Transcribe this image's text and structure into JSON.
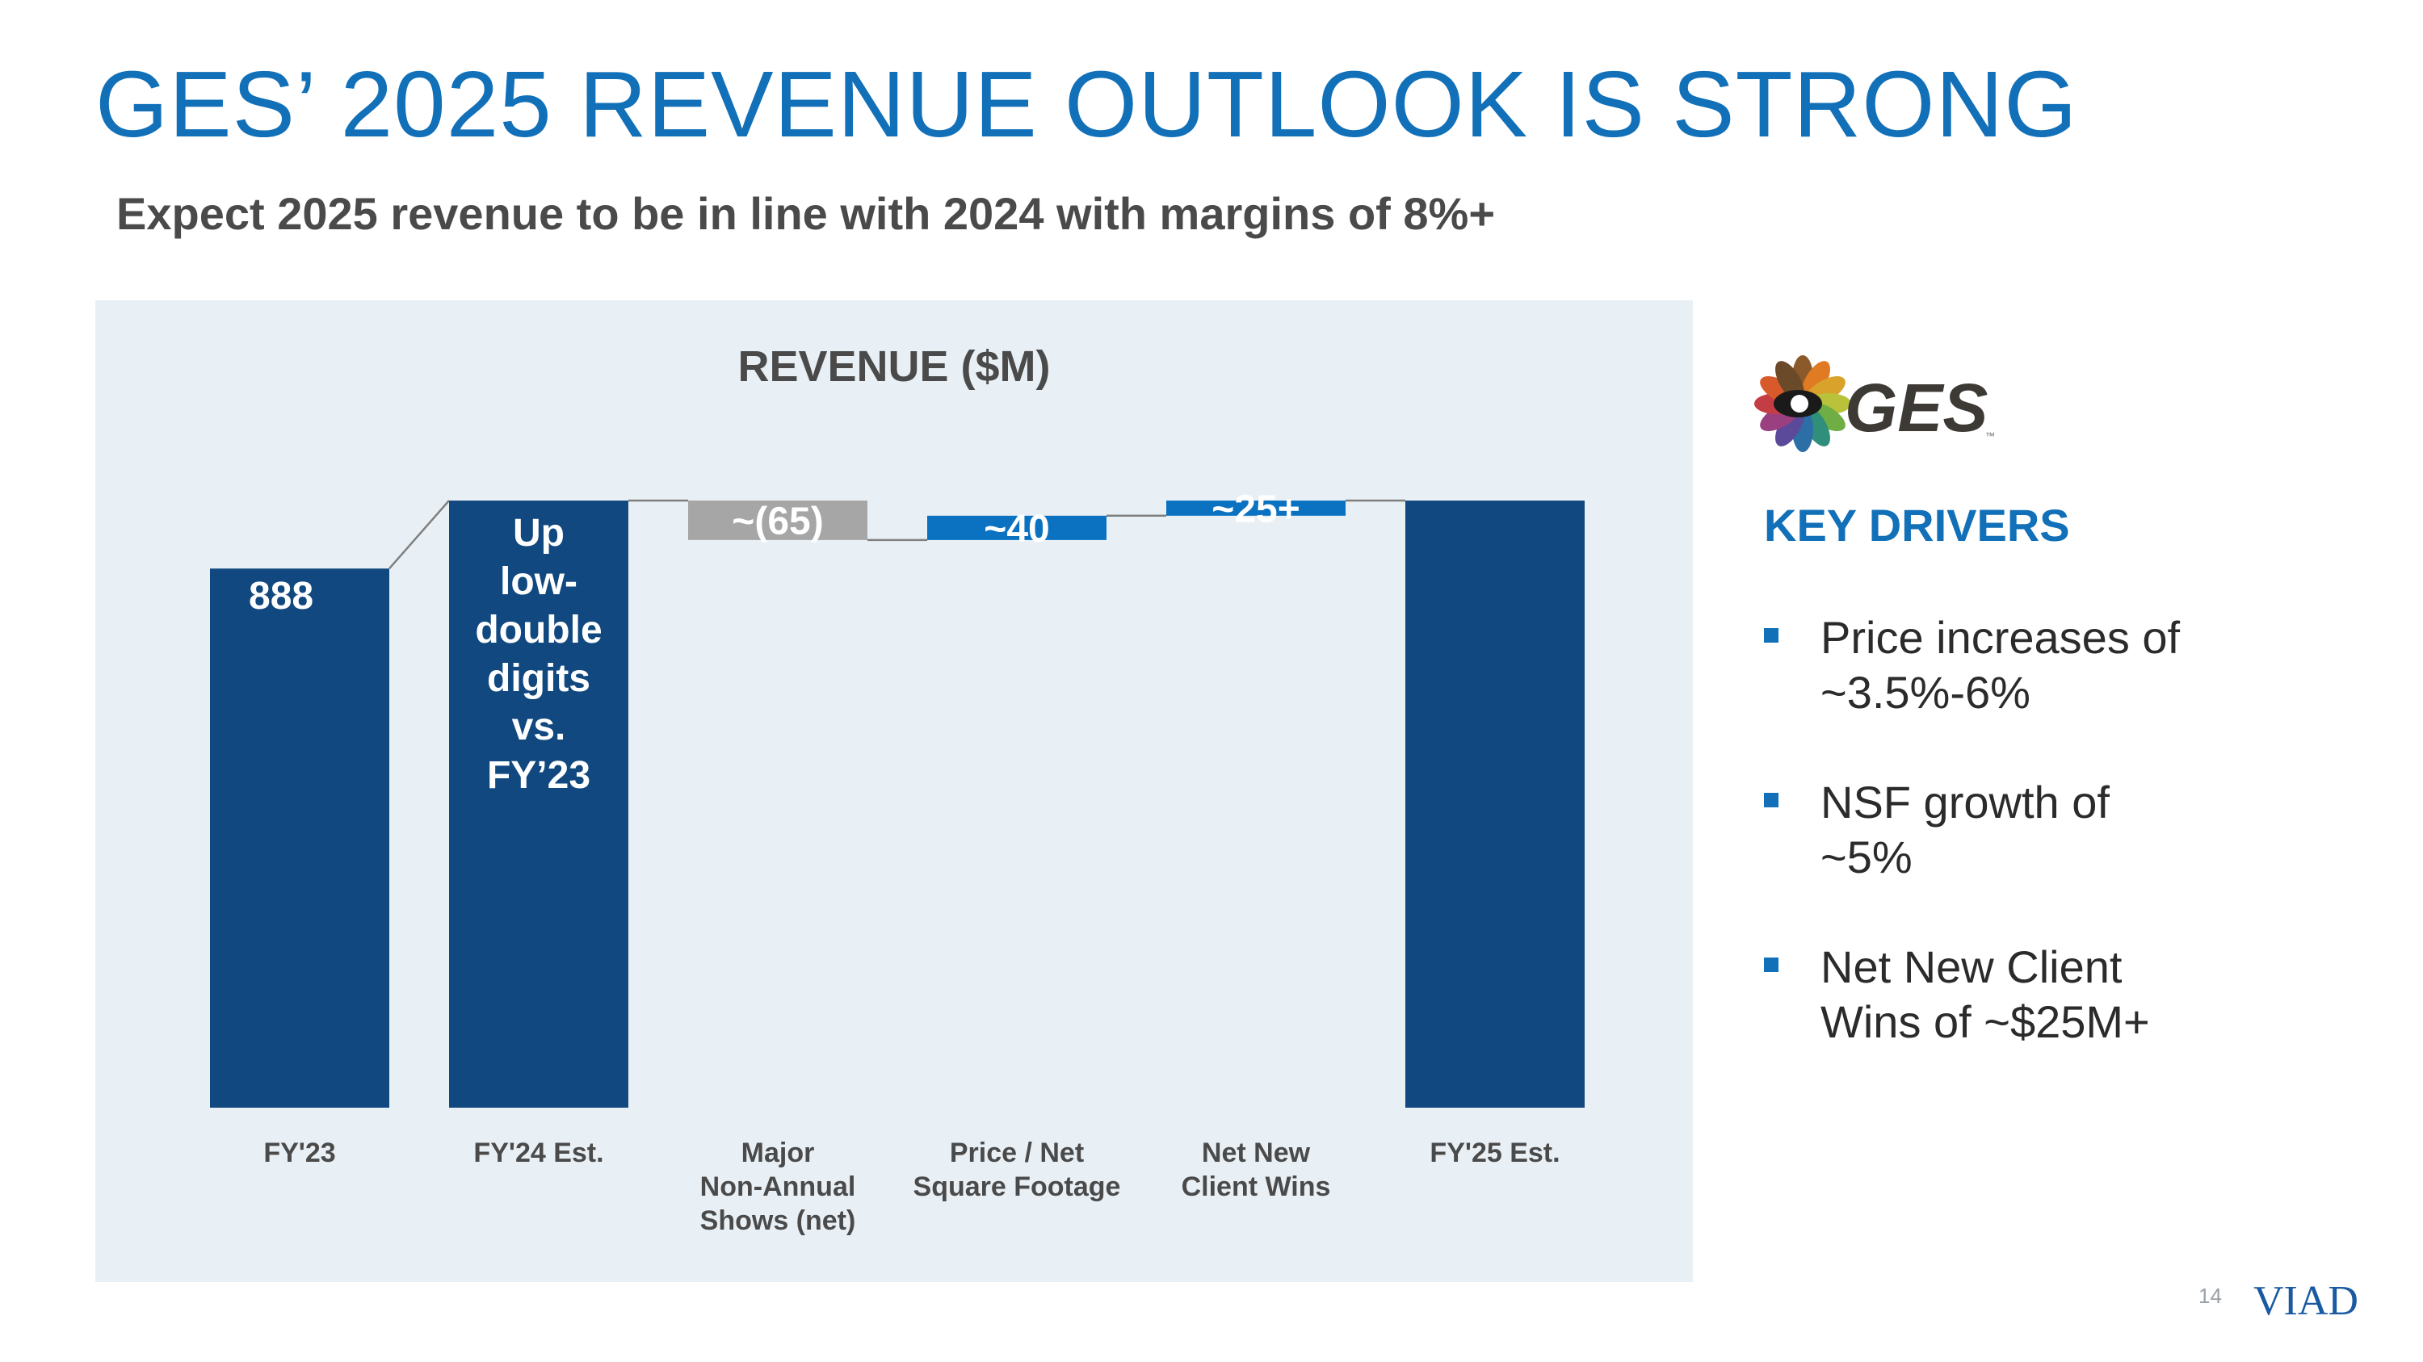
{
  "slide": {
    "title": "GES’ 2025 REVENUE OUTLOOK IS STRONG",
    "subtitle": "Expect 2025 revenue to be in line with 2024 with margins of 8%+",
    "page_number": "14"
  },
  "logos": {
    "ges": "GES",
    "ges_tm": "™",
    "viad": "VIAD"
  },
  "key_drivers": {
    "title": "KEY DRIVERS",
    "items": [
      {
        "line1": "Price increases of",
        "line2": "~3.5%-6%"
      },
      {
        "line1": "NSF growth of",
        "line2": "~5%"
      },
      {
        "line1": "Net New Client",
        "line2": "Wins of ~$25M+"
      }
    ]
  },
  "colors": {
    "title_blue": "#1170b8",
    "total_bar": "#10487f",
    "increase_bar": "#0b72c2",
    "decrease_bar": "#a6a6a6",
    "panel_bg": "#e9f0f5"
  },
  "chart_data": {
    "type": "waterfall",
    "title": "REVENUE ($M)",
    "categories": [
      [
        "FY'23"
      ],
      [
        "FY'24 Est."
      ],
      [
        "Major",
        "Non-Annual",
        "Shows (net)"
      ],
      [
        "Price / Net",
        "Square Footage"
      ],
      [
        "Net New",
        "Client Wins"
      ],
      [
        "FY'25 Est."
      ]
    ],
    "bars": [
      {
        "kind": "total",
        "value": 888,
        "label": [
          "888"
        ]
      },
      {
        "kind": "total",
        "value": 1000,
        "label": [
          "Up",
          "low-",
          "double",
          "digits",
          "vs.",
          "FY’23"
        ]
      },
      {
        "kind": "decrease",
        "value": -65,
        "label": [
          "~(65)"
        ]
      },
      {
        "kind": "increase",
        "value": 40,
        "label": [
          "~40"
        ]
      },
      {
        "kind": "increase",
        "value": 25,
        "label": [
          "~25+"
        ]
      },
      {
        "kind": "total",
        "value": 1000,
        "label": []
      }
    ],
    "note": "FY'24 Est. and FY'25 Est. values are unlabeled on the slide; bar heights are estimated from the bars relative to the labeled FY'23 value (888).",
    "ylim": [
      0,
      1000
    ],
    "axes_visible": false,
    "connector_lines": true
  }
}
